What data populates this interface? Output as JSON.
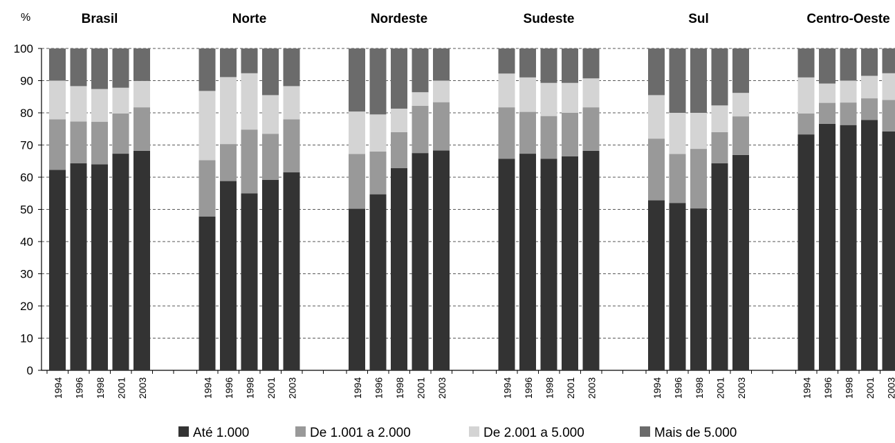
{
  "chart_data": {
    "type": "bar",
    "stacked": true,
    "percent_scale": true,
    "ylabel": "%",
    "ylim": [
      0,
      100
    ],
    "yticks": [
      0,
      10,
      20,
      30,
      40,
      50,
      60,
      70,
      80,
      90,
      100
    ],
    "grid": "horizontal dashed",
    "legend_position": "bottom",
    "series": [
      {
        "name": "Até 1.000",
        "color": "#333333"
      },
      {
        "name": "De 1.001 a 2.000",
        "color": "#999999"
      },
      {
        "name": "De 2.001 a 5.000",
        "color": "#d4d4d4"
      },
      {
        "name": "Mais de 5.000",
        "color": "#6b6b6b"
      }
    ],
    "groups": [
      {
        "name": "Brasil",
        "categories": [
          "1994",
          "1996",
          "1998",
          "2001",
          "2003"
        ],
        "values": [
          [
            62.3,
            15.7,
            12.0,
            10.0
          ],
          [
            64.3,
            13.0,
            11.0,
            11.7
          ],
          [
            64.0,
            13.2,
            10.2,
            12.6
          ],
          [
            67.3,
            12.5,
            8.0,
            12.2
          ],
          [
            68.2,
            13.5,
            8.2,
            10.1
          ]
        ]
      },
      {
        "name": "Norte",
        "categories": [
          "1994",
          "1996",
          "1998",
          "2001",
          "2003"
        ],
        "values": [
          [
            47.8,
            17.5,
            21.5,
            13.2
          ],
          [
            58.8,
            11.5,
            20.8,
            8.9
          ],
          [
            55.0,
            19.8,
            17.5,
            7.7
          ],
          [
            59.2,
            14.3,
            12.0,
            14.5
          ],
          [
            61.5,
            16.5,
            10.3,
            11.7
          ]
        ]
      },
      {
        "name": "Nordeste",
        "categories": [
          "1994",
          "1996",
          "1998",
          "2001",
          "2003"
        ],
        "values": [
          [
            50.2,
            17.0,
            13.2,
            19.6
          ],
          [
            54.7,
            13.3,
            11.5,
            20.5
          ],
          [
            62.8,
            11.2,
            7.3,
            18.7
          ],
          [
            67.5,
            14.7,
            4.2,
            13.6
          ],
          [
            68.3,
            15.0,
            6.7,
            10.0
          ]
        ]
      },
      {
        "name": "Sudeste",
        "categories": [
          "1994",
          "1996",
          "1998",
          "2001",
          "2003"
        ],
        "values": [
          [
            65.7,
            16.0,
            10.5,
            7.8
          ],
          [
            67.3,
            13.0,
            10.7,
            9.0
          ],
          [
            65.7,
            13.3,
            10.3,
            10.7
          ],
          [
            66.5,
            13.5,
            9.3,
            10.7
          ],
          [
            68.2,
            13.5,
            9.0,
            9.3
          ]
        ]
      },
      {
        "name": "Sul",
        "categories": [
          "1994",
          "1996",
          "1998",
          "2001",
          "2003"
        ],
        "values": [
          [
            52.8,
            19.2,
            13.5,
            14.5
          ],
          [
            52.0,
            15.2,
            12.8,
            20.0
          ],
          [
            50.3,
            18.5,
            11.2,
            20.0
          ],
          [
            64.3,
            9.7,
            8.3,
            17.7
          ],
          [
            66.9,
            12.0,
            7.3,
            13.8
          ]
        ]
      },
      {
        "name": "Centro-Oeste",
        "categories": [
          "1994",
          "1996",
          "1998",
          "2001",
          "2003"
        ],
        "values": [
          [
            73.3,
            6.5,
            11.2,
            9.0
          ],
          [
            76.6,
            6.5,
            6.0,
            10.9
          ],
          [
            76.2,
            7.0,
            6.8,
            10.0
          ],
          [
            77.8,
            6.7,
            7.0,
            8.5
          ],
          [
            74.2,
            9.8,
            8.3,
            7.7
          ]
        ]
      }
    ]
  }
}
